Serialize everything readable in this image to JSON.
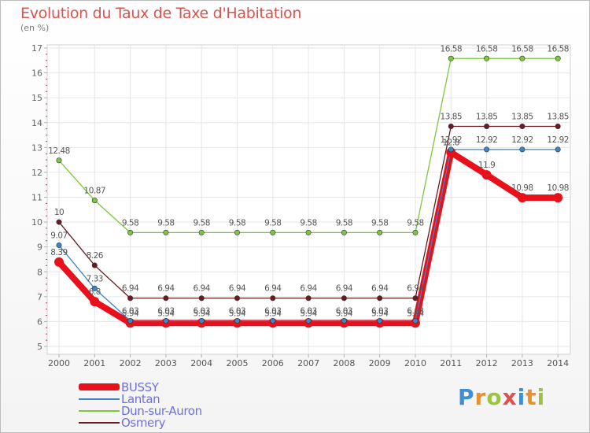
{
  "header": {
    "title": "Evolution du Taux de Taxe d'Habitation",
    "subtitle": "(en %)"
  },
  "logo": {
    "letters": [
      "P",
      "r",
      "o",
      "x",
      "i",
      "t",
      "i"
    ],
    "colors": [
      "#3f8fd6",
      "#e8912e",
      "#9bc53d",
      "#d9534f",
      "#3f8fd6",
      "#e8912e",
      "#9bc53d"
    ]
  },
  "chart_data": {
    "type": "line",
    "title": "Evolution du Taux de Taxe d'Habitation",
    "ylabel": "(en %)",
    "xlabel": "",
    "x": [
      "2000",
      "2001",
      "2002",
      "2003",
      "2004",
      "2005",
      "2006",
      "2007",
      "2008",
      "2009",
      "2010",
      "2011",
      "2012",
      "2013",
      "2014"
    ],
    "ylim": [
      5,
      17
    ],
    "yticks": [
      "5",
      "6",
      "7",
      "8",
      "9",
      "10",
      "11",
      "12",
      "13",
      "14",
      "15",
      "16",
      "17"
    ],
    "grid": true,
    "legend_position": "bottom-left",
    "series": [
      {
        "name": "BUSSY",
        "color": "#e8101a",
        "values": [
          8.39,
          6.8,
          5.94,
          5.94,
          5.94,
          5.94,
          5.94,
          5.94,
          5.94,
          5.94,
          5.94,
          12.8,
          11.9,
          10.98,
          10.98
        ],
        "labels": [
          "8.39",
          "6.8",
          "5.94",
          "5.94",
          "5.94",
          "5.94",
          "5.94",
          "5.94",
          "5.94",
          "5.94",
          "5.94",
          "12.8",
          "11.9",
          "10.98",
          "10.98"
        ]
      },
      {
        "name": "Lantan",
        "color": "#3a86c8",
        "values": [
          9.07,
          7.33,
          6.03,
          6.03,
          6.03,
          6.03,
          6.03,
          6.03,
          6.03,
          6.03,
          6.03,
          12.92,
          12.92,
          12.92,
          12.92
        ],
        "labels": [
          "9.07",
          "7.33",
          "6.03",
          "6.03",
          "6.03",
          "6.03",
          "6.03",
          "6.03",
          "6.03",
          "6.03",
          "6.03",
          "12.92",
          "12.92",
          "12.92",
          "12.92"
        ]
      },
      {
        "name": "Dun-sur-Auron",
        "color": "#7dc73f",
        "values": [
          12.48,
          10.87,
          9.58,
          9.58,
          9.58,
          9.58,
          9.58,
          9.58,
          9.58,
          9.58,
          9.58,
          16.58,
          16.58,
          16.58,
          16.58
        ],
        "labels": [
          "12.48",
          "10.87",
          "9.58",
          "9.58",
          "9.58",
          "9.58",
          "9.58",
          "9.58",
          "9.58",
          "9.58",
          "9.58",
          "16.58",
          "16.58",
          "16.58",
          "16.58"
        ]
      },
      {
        "name": "Osmery",
        "color": "#6b1a22",
        "values": [
          10,
          8.26,
          6.94,
          6.94,
          6.94,
          6.94,
          6.94,
          6.94,
          6.94,
          6.94,
          6.94,
          13.85,
          13.85,
          13.85,
          13.85
        ],
        "labels": [
          "10",
          "8.26",
          "6.94",
          "6.94",
          "6.94",
          "6.94",
          "6.94",
          "6.94",
          "6.94",
          "6.94",
          "6.94",
          "13.85",
          "13.85",
          "13.85",
          "13.85"
        ]
      }
    ]
  }
}
